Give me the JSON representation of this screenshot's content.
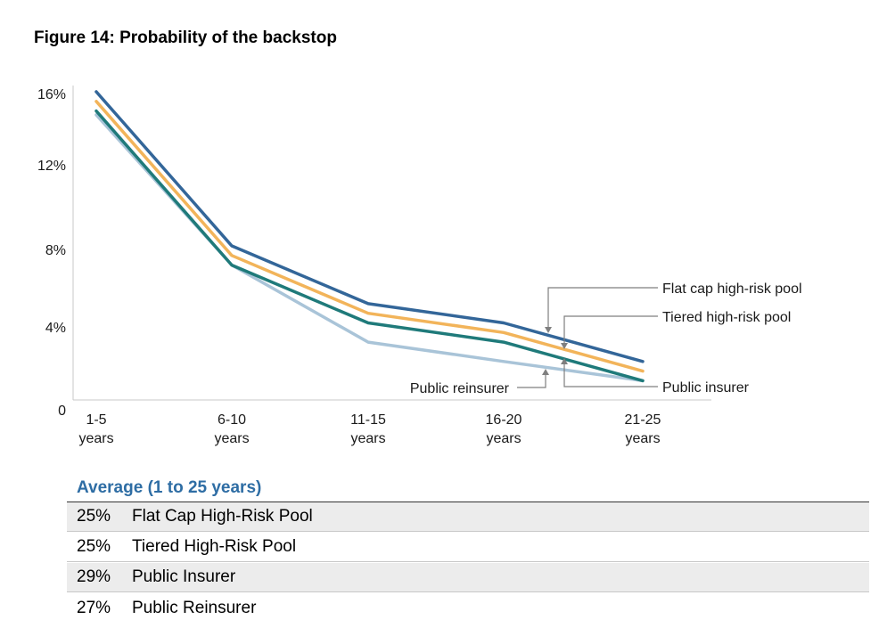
{
  "figure_title": "Figure 14: Probability of the backstop",
  "chart_data": {
    "type": "line",
    "title": "Figure 14: Probability of the backstop",
    "xlabel": "",
    "ylabel": "",
    "categories": [
      "1-5\nyears",
      "6-10\nyears",
      "11-15\nyears",
      "16-20\nyears",
      "21-25\nyears"
    ],
    "y_ticks": [
      {
        "value": 0,
        "label": "0"
      },
      {
        "value": 4,
        "label": "4%"
      },
      {
        "value": 8,
        "label": "8%"
      },
      {
        "value": 12,
        "label": "12%"
      },
      {
        "value": 16,
        "label": "16%"
      }
    ],
    "ylim": [
      0,
      16.5
    ],
    "grid": false,
    "series": [
      {
        "name": "Flat cap high-risk pool",
        "color": "#336699",
        "values": [
          16.0,
          8.0,
          5.0,
          4.0,
          2.0
        ]
      },
      {
        "name": "Tiered high-risk pool",
        "color": "#f2b45a",
        "values": [
          15.5,
          7.5,
          4.5,
          3.5,
          1.5
        ]
      },
      {
        "name": "Public insurer",
        "color": "#1f7a7a",
        "values": [
          15.0,
          7.0,
          4.0,
          3.0,
          1.0
        ]
      },
      {
        "name": "Public reinsurer",
        "color": "#a9c4d8",
        "values": [
          14.8,
          7.0,
          3.0,
          2.0,
          1.0
        ]
      }
    ],
    "annotations": [
      "Flat cap high-risk pool",
      "Tiered high-risk pool",
      "Public insurer",
      "Public reinsurer"
    ]
  },
  "average": {
    "heading": "Average (1 to 25 years)",
    "rows": [
      {
        "pct": "25%",
        "label": "Flat Cap High-Risk Pool"
      },
      {
        "pct": "25%",
        "label": "Tiered High-Risk Pool"
      },
      {
        "pct": "29%",
        "label": "Public Insurer"
      },
      {
        "pct": "27%",
        "label": "Public Reinsurer"
      }
    ]
  }
}
